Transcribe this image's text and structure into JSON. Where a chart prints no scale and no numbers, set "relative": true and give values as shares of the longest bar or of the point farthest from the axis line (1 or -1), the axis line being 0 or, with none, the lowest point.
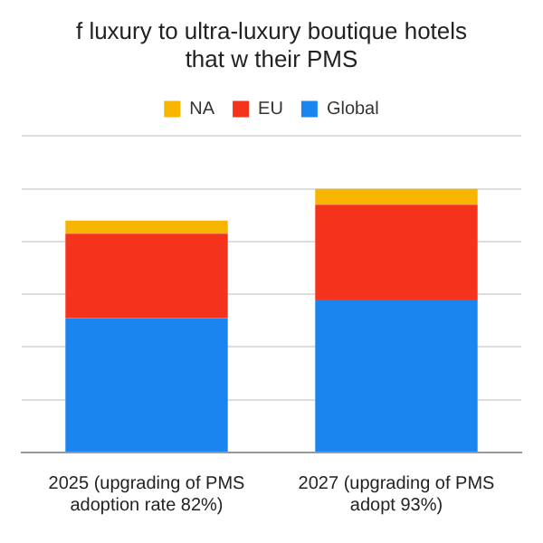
{
  "chart_data": {
    "type": "bar",
    "title": "f luxury to ultra-luxury boutique hotels that w their PMS",
    "categories": [
      "2025 (upgrading of PMS adoption rate 82%)",
      "2027 (upgrading of PMS adopt 93%)"
    ],
    "stacked": true,
    "relative": true,
    "grid": "y",
    "legend": "top",
    "series": [
      {
        "name": "Global",
        "color": "#1a85ef",
        "values": [
          0.51,
          0.58
        ]
      },
      {
        "name": "EU",
        "color": "#f5321c",
        "values": [
          0.32,
          0.36
        ]
      },
      {
        "name": "NA",
        "color": "#f7b500",
        "values": [
          0.05,
          0.06
        ]
      }
    ]
  }
}
